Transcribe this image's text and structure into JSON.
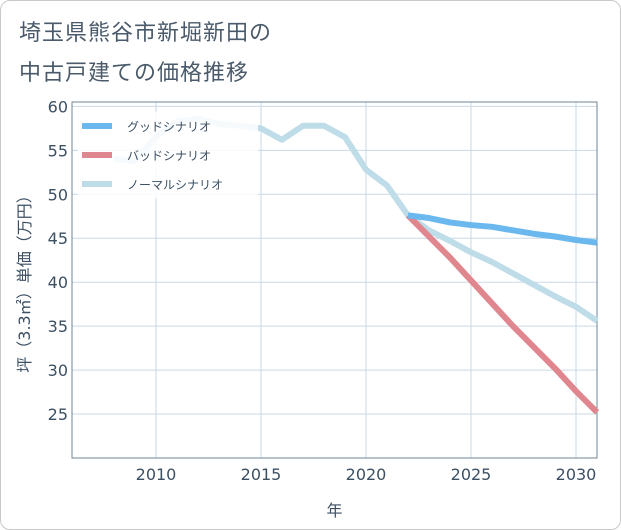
{
  "title_line1": "埼玉県熊谷市新堀新田の",
  "title_line2": "中古戸建ての価格推移",
  "colors": {
    "good": "#6bb8ee",
    "bad": "#e0868e",
    "normal": "#bfdce9",
    "grid": "#cad9e6",
    "axis": "#3c5064"
  },
  "chart_data": {
    "type": "line",
    "xlabel": "年",
    "ylabel": "坪（3.3㎡）単価（万円）",
    "xlim": [
      2006,
      2031
    ],
    "ylim": [
      20,
      60.5
    ],
    "xticks": [
      2010,
      2015,
      2020,
      2025,
      2030
    ],
    "yticks": [
      25,
      30,
      35,
      40,
      45,
      50,
      55,
      60
    ],
    "grid": true,
    "legend_position": "top-left",
    "series": [
      {
        "name": "グッドシナリオ",
        "color_key": "good",
        "points": [
          [
            2022,
            47.6
          ],
          [
            2023,
            47.3
          ],
          [
            2024,
            46.8
          ],
          [
            2025,
            46.5
          ],
          [
            2026,
            46.3
          ],
          [
            2027,
            45.9
          ],
          [
            2028,
            45.5
          ],
          [
            2029,
            45.2
          ],
          [
            2030,
            44.8
          ],
          [
            2031,
            44.5
          ]
        ]
      },
      {
        "name": "バッドシナリオ",
        "color_key": "bad",
        "points": [
          [
            2022,
            47.6
          ],
          [
            2023,
            45.2
          ],
          [
            2024,
            42.8
          ],
          [
            2025,
            40.2
          ],
          [
            2026,
            37.6
          ],
          [
            2027,
            35.0
          ],
          [
            2028,
            32.6
          ],
          [
            2029,
            30.2
          ],
          [
            2030,
            27.6
          ],
          [
            2031,
            25.2
          ]
        ]
      },
      {
        "name": "ノーマルシナリオ",
        "color_key": "normal",
        "points": [
          [
            2008,
            54.0
          ],
          [
            2009,
            53.8
          ],
          [
            2010,
            56.5
          ],
          [
            2011,
            58.3
          ],
          [
            2012,
            58.6
          ],
          [
            2013,
            58.0
          ],
          [
            2014,
            57.8
          ],
          [
            2015,
            57.5
          ],
          [
            2016,
            56.2
          ],
          [
            2017,
            57.8
          ],
          [
            2018,
            57.8
          ],
          [
            2019,
            56.5
          ],
          [
            2020,
            52.8
          ],
          [
            2021,
            51.0
          ],
          [
            2022,
            47.6
          ],
          [
            2023,
            45.9
          ],
          [
            2024,
            44.7
          ],
          [
            2025,
            43.4
          ],
          [
            2026,
            42.3
          ],
          [
            2027,
            41.0
          ],
          [
            2028,
            39.7
          ],
          [
            2029,
            38.4
          ],
          [
            2030,
            37.2
          ],
          [
            2031,
            35.6
          ]
        ]
      }
    ]
  }
}
